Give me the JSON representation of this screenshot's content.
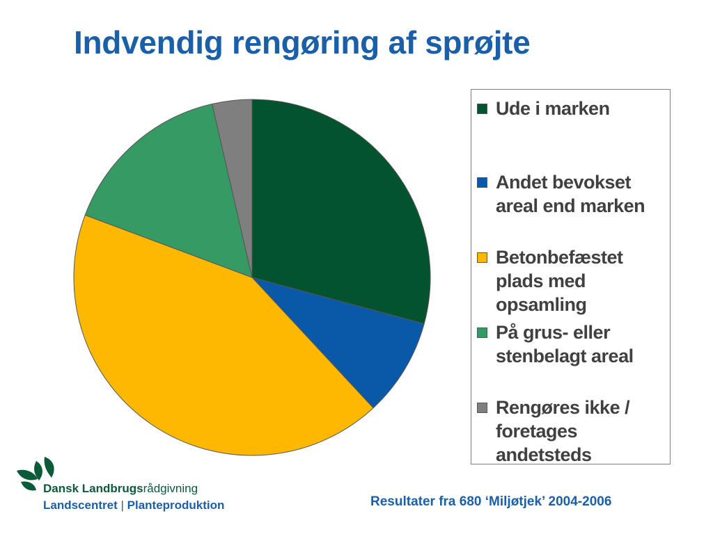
{
  "title": "Indvendig rengøring af sprøjte",
  "chart_data": {
    "type": "pie",
    "categories": [
      "Ude i marken",
      "Andet bevokset areal end marken",
      "Betonbefæstet plads med opsamling",
      "På grus- eller stenbelagt areal",
      "Rengøres ikke / foretages andetsteds"
    ],
    "values": [
      29.2,
      8.9,
      42.6,
      15.7,
      3.6
    ],
    "colors": [
      "#03532f",
      "#0a58a8",
      "#ffb800",
      "#369a65",
      "#7f7f7f"
    ],
    "legend_position": "right",
    "start": "top, clockwise"
  },
  "legend": {
    "items": [
      {
        "label": "Ude i marken",
        "color": "#03532f"
      },
      {
        "label": "Andet bevokset areal end marken",
        "color": "#0a58a8"
      },
      {
        "label": "Betonbefæstet plads med opsamling",
        "color": "#ffb800"
      },
      {
        "label": "På grus- eller stenbelagt areal",
        "color": "#369a65"
      },
      {
        "label": "Rengøres ikke / foretages andetsteds",
        "color": "#7f7f7f"
      }
    ]
  },
  "branding": {
    "org_bold": "Dansk Landbrugs",
    "org_rest": "rådgivning",
    "unit_left": "Landscentret",
    "separator": "|",
    "unit_right": "Planteproduktion"
  },
  "footer": {
    "source": "Resultater fra 680 ‘Miljøtjek’ 2004-2006"
  }
}
